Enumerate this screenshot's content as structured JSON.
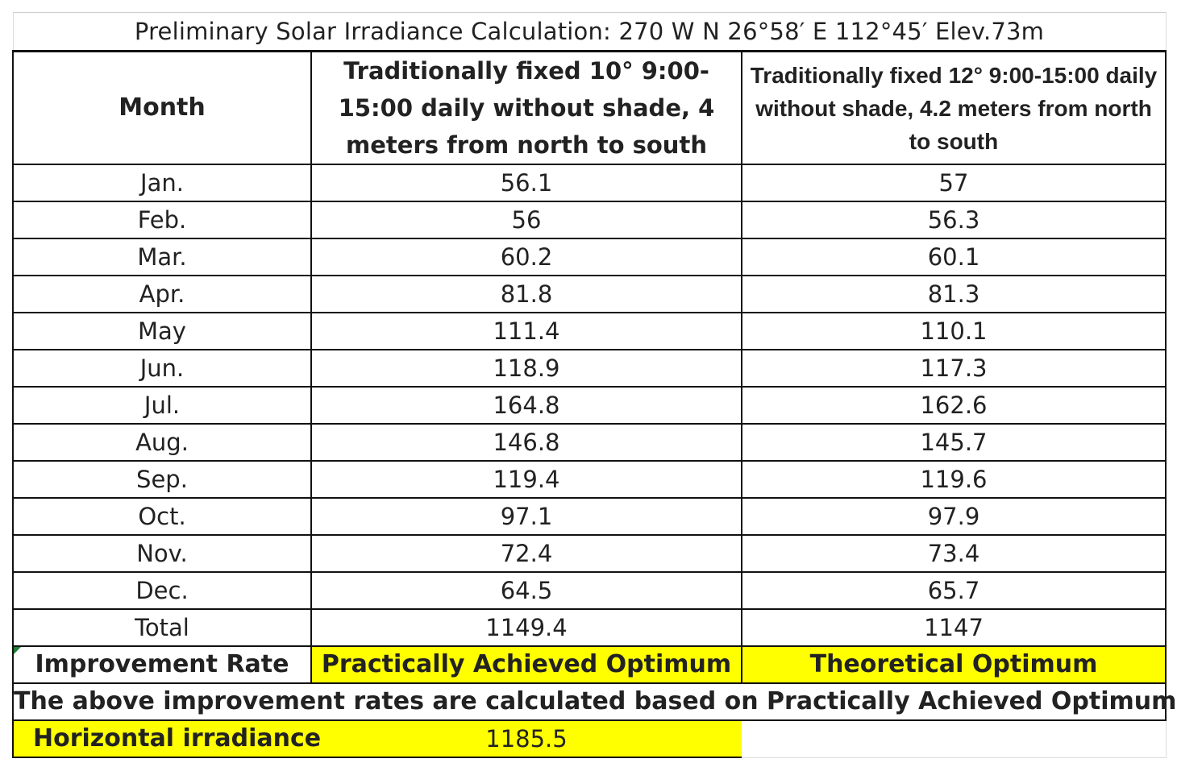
{
  "title": "Preliminary Solar Irradiance Calculation: 270 W  N 26°58′   E 112°45′  Elev.73m",
  "headers": {
    "month": "Month",
    "col1": "Traditionally fixed 10° 9:00-15:00 daily without shade, 4 meters from north to south",
    "col2": "Traditionally fixed 12°   9:00-15:00 daily without shade, 4.2 meters from north to south"
  },
  "rows": [
    {
      "month": "Jan.",
      "v1": "56.1",
      "v2": "57"
    },
    {
      "month": "Feb.",
      "v1": "56",
      "v2": "56.3"
    },
    {
      "month": "Mar.",
      "v1": "60.2",
      "v2": "60.1"
    },
    {
      "month": "Apr.",
      "v1": "81.8",
      "v2": "81.3"
    },
    {
      "month": "May",
      "v1": "111.4",
      "v2": "110.1"
    },
    {
      "month": "Jun.",
      "v1": "118.9",
      "v2": "117.3"
    },
    {
      "month": "Jul.",
      "v1": "164.8",
      "v2": "162.6"
    },
    {
      "month": "Aug.",
      "v1": "146.8",
      "v2": "145.7"
    },
    {
      "month": "Sep.",
      "v1": "119.4",
      "v2": "119.6"
    },
    {
      "month": "Oct.",
      "v1": "97.1",
      "v2": "97.9"
    },
    {
      "month": "Nov.",
      "v1": "72.4",
      "v2": "73.4"
    },
    {
      "month": "Dec.",
      "v1": "64.5",
      "v2": "65.7"
    }
  ],
  "total": {
    "label": "Total",
    "v1": "1149.4",
    "v2": "1147"
  },
  "improvement": {
    "label": "Improvement Rate",
    "col1": "Practically Achieved Optimum",
    "col2": "Theoretical Optimum"
  },
  "note": "The above improvement rates are calculated based on Practically Achieved Optimum",
  "horizontal": {
    "label": "Horizontal irradiance",
    "value": "1185.5"
  },
  "colors": {
    "highlight": "#ffff00",
    "border": "#111111",
    "text": "#222222",
    "cell_marker": "#1e7e34"
  }
}
